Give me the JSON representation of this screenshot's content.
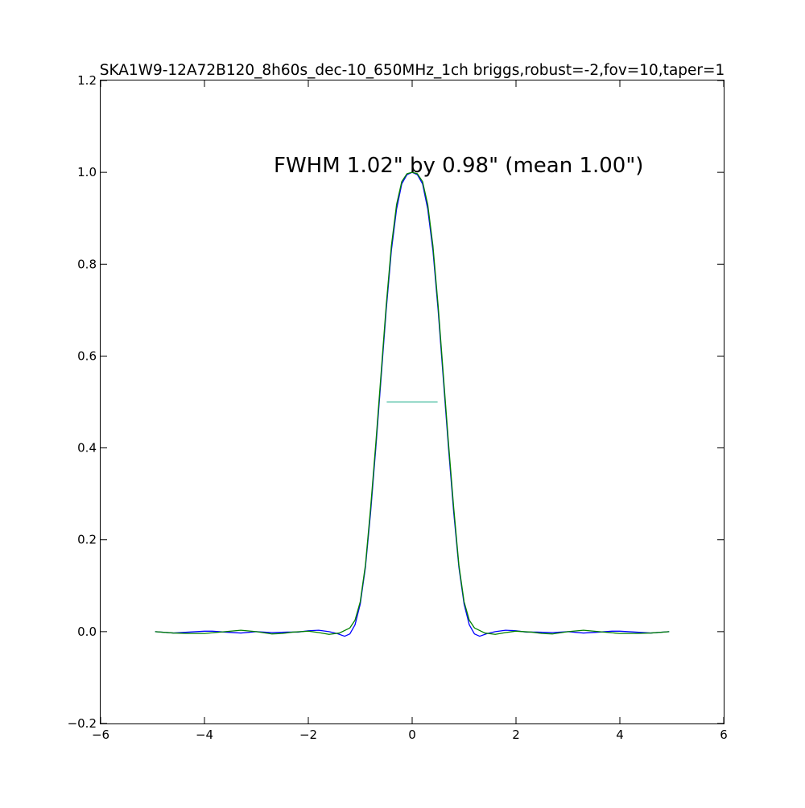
{
  "chart_data": {
    "type": "line",
    "title": "SKA1W9-12A72B120_8h60s_dec-10_650MHz_1ch briggs,robust=-2,fov=10,taper=1",
    "annotation": "FWHM 1.02\" by 0.98\" (mean 1.00\")",
    "xlabel": "",
    "ylabel": "",
    "xlim": [
      -6,
      6
    ],
    "ylim": [
      -0.2,
      1.2
    ],
    "xticks": [
      -6,
      -4,
      -2,
      0,
      2,
      4,
      6
    ],
    "xtick_labels": [
      "−6",
      "−4",
      "−2",
      "0",
      "2",
      "4",
      "6"
    ],
    "yticks": [
      -0.2,
      0.0,
      0.2,
      0.4,
      0.6,
      0.8,
      1.0,
      1.2
    ],
    "ytick_labels": [
      "−0.2",
      "0.0",
      "0.2",
      "0.4",
      "0.6",
      "0.8",
      "1.0",
      "1.2"
    ],
    "grid": false,
    "legend": "none",
    "series": [
      {
        "color": "#0000ff",
        "x": [
          -4.95,
          -4.6,
          -4.3,
          -4.0,
          -3.85,
          -3.6,
          -3.3,
          -3.0,
          -2.7,
          -2.4,
          -2.2,
          -2.0,
          -1.8,
          -1.6,
          -1.45,
          -1.3,
          -1.2,
          -1.1,
          -1.0,
          -0.9,
          -0.8,
          -0.7,
          -0.6,
          -0.5,
          -0.4,
          -0.3,
          -0.2,
          -0.1,
          0.0,
          0.1,
          0.2,
          0.3,
          0.4,
          0.5,
          0.6,
          0.7,
          0.8,
          0.9,
          1.0,
          1.1,
          1.2,
          1.3,
          1.45,
          1.6,
          1.8,
          2.0,
          2.2,
          2.4,
          2.7,
          3.0,
          3.3,
          3.6,
          3.85,
          4.0,
          4.3,
          4.6,
          4.95
        ],
        "y": [
          0.0,
          -0.003,
          -0.001,
          0.001,
          0.001,
          -0.001,
          -0.003,
          0.0,
          -0.002,
          -0.001,
          -0.001,
          0.002,
          0.003,
          0.0,
          -0.004,
          -0.01,
          -0.005,
          0.015,
          0.06,
          0.14,
          0.26,
          0.4,
          0.55,
          0.7,
          0.83,
          0.92,
          0.975,
          0.995,
          1.0,
          0.995,
          0.975,
          0.92,
          0.83,
          0.7,
          0.55,
          0.4,
          0.26,
          0.14,
          0.06,
          0.015,
          -0.005,
          -0.01,
          -0.004,
          0.0,
          0.003,
          0.002,
          -0.001,
          -0.001,
          -0.002,
          0.0,
          -0.003,
          -0.001,
          0.001,
          0.001,
          -0.001,
          -0.003,
          0.0
        ]
      },
      {
        "color": "#008000",
        "x": [
          -4.95,
          -4.6,
          -4.3,
          -4.0,
          -3.6,
          -3.3,
          -3.0,
          -2.7,
          -2.5,
          -2.3,
          -2.0,
          -1.8,
          -1.6,
          -1.4,
          -1.2,
          -1.1,
          -1.0,
          -0.9,
          -0.8,
          -0.7,
          -0.6,
          -0.5,
          -0.4,
          -0.3,
          -0.2,
          -0.1,
          0.0,
          0.1,
          0.2,
          0.3,
          0.4,
          0.5,
          0.6,
          0.7,
          0.8,
          0.9,
          1.0,
          1.1,
          1.2,
          1.4,
          1.6,
          1.8,
          2.0,
          2.3,
          2.5,
          2.7,
          3.0,
          3.3,
          3.6,
          4.0,
          4.3,
          4.6,
          4.95
        ],
        "y": [
          0.0,
          -0.003,
          -0.004,
          -0.004,
          0.0,
          0.003,
          0.0,
          -0.005,
          -0.004,
          -0.001,
          0.001,
          -0.002,
          -0.006,
          -0.003,
          0.008,
          0.025,
          0.065,
          0.145,
          0.27,
          0.41,
          0.56,
          0.71,
          0.84,
          0.93,
          0.98,
          0.997,
          1.0,
          0.997,
          0.98,
          0.93,
          0.84,
          0.71,
          0.56,
          0.41,
          0.27,
          0.145,
          0.065,
          0.025,
          0.008,
          -0.003,
          -0.006,
          -0.002,
          0.001,
          -0.001,
          -0.004,
          -0.005,
          0.0,
          0.003,
          0.0,
          -0.004,
          -0.004,
          -0.003,
          0.0
        ]
      },
      {
        "color": "#3cb89a",
        "x": [
          -0.49,
          0.49
        ],
        "y": [
          0.5,
          0.5
        ]
      }
    ]
  }
}
